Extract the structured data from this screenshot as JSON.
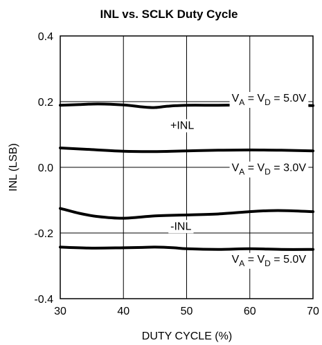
{
  "chart_data": {
    "type": "line",
    "title": "INL vs. SCLK Duty Cycle",
    "xlabel": "DUTY CYCLE (%)",
    "ylabel": "INL (LSB)",
    "xlim": [
      30,
      70
    ],
    "ylim": [
      -0.4,
      0.4
    ],
    "xticks": [
      30,
      40,
      50,
      60,
      70
    ],
    "yticks": [
      -0.4,
      -0.2,
      0.0,
      0.2,
      0.4
    ],
    "xtick_labels": [
      "30",
      "40",
      "50",
      "60",
      "70"
    ],
    "ytick_labels": [
      "-0.4",
      "-0.2",
      "0.0",
      "0.2",
      "0.4"
    ],
    "grid": true,
    "series": [
      {
        "id": "pos-5v",
        "color": "#000000",
        "x": [
          30,
          33,
          36,
          40,
          43,
          45,
          47,
          50,
          55,
          60,
          65,
          70
        ],
        "y": [
          0.189,
          0.191,
          0.193,
          0.19,
          0.184,
          0.182,
          0.186,
          0.189,
          0.189,
          0.19,
          0.19,
          0.188
        ]
      },
      {
        "id": "pos-3v",
        "color": "#000000",
        "x": [
          30,
          35,
          40,
          45,
          50,
          55,
          60,
          65,
          70
        ],
        "y": [
          0.059,
          0.054,
          0.049,
          0.048,
          0.05,
          0.052,
          0.053,
          0.052,
          0.05
        ]
      },
      {
        "id": "neg-3v",
        "color": "#000000",
        "x": [
          30,
          33,
          36,
          40,
          45,
          50,
          55,
          60,
          63,
          66,
          70
        ],
        "y": [
          -0.125,
          -0.14,
          -0.15,
          -0.155,
          -0.148,
          -0.145,
          -0.142,
          -0.135,
          -0.132,
          -0.132,
          -0.135
        ]
      },
      {
        "id": "neg-5v",
        "color": "#000000",
        "x": [
          30,
          35,
          40,
          43,
          45,
          48,
          50,
          55,
          60,
          65,
          70
        ],
        "y": [
          -0.243,
          -0.246,
          -0.245,
          -0.244,
          -0.243,
          -0.245,
          -0.248,
          -0.25,
          -0.248,
          -0.25,
          -0.25
        ]
      }
    ],
    "annotations": [
      {
        "id": "va-5v-top",
        "parts": [
          "V",
          "A",
          " = V",
          "D",
          " = 5.0V"
        ],
        "x": 70,
        "y": 0.2,
        "anchor": "end"
      },
      {
        "id": "plus-inl",
        "text": "+INL",
        "x": 49.3,
        "y": 0.117,
        "anchor": "middle"
      },
      {
        "id": "va-3v",
        "parts": [
          "V",
          "A",
          " = V",
          "D",
          " = 3.0V"
        ],
        "x": 70,
        "y": -0.012,
        "anchor": "end"
      },
      {
        "id": "minus-inl",
        "text": "-INL",
        "x": 49.1,
        "y": -0.19,
        "anchor": "middle"
      },
      {
        "id": "va-5v-bottom",
        "parts": [
          "V",
          "A",
          " = V",
          "D",
          " = 5.0V"
        ],
        "x": 70,
        "y": -0.29,
        "anchor": "end"
      }
    ]
  }
}
